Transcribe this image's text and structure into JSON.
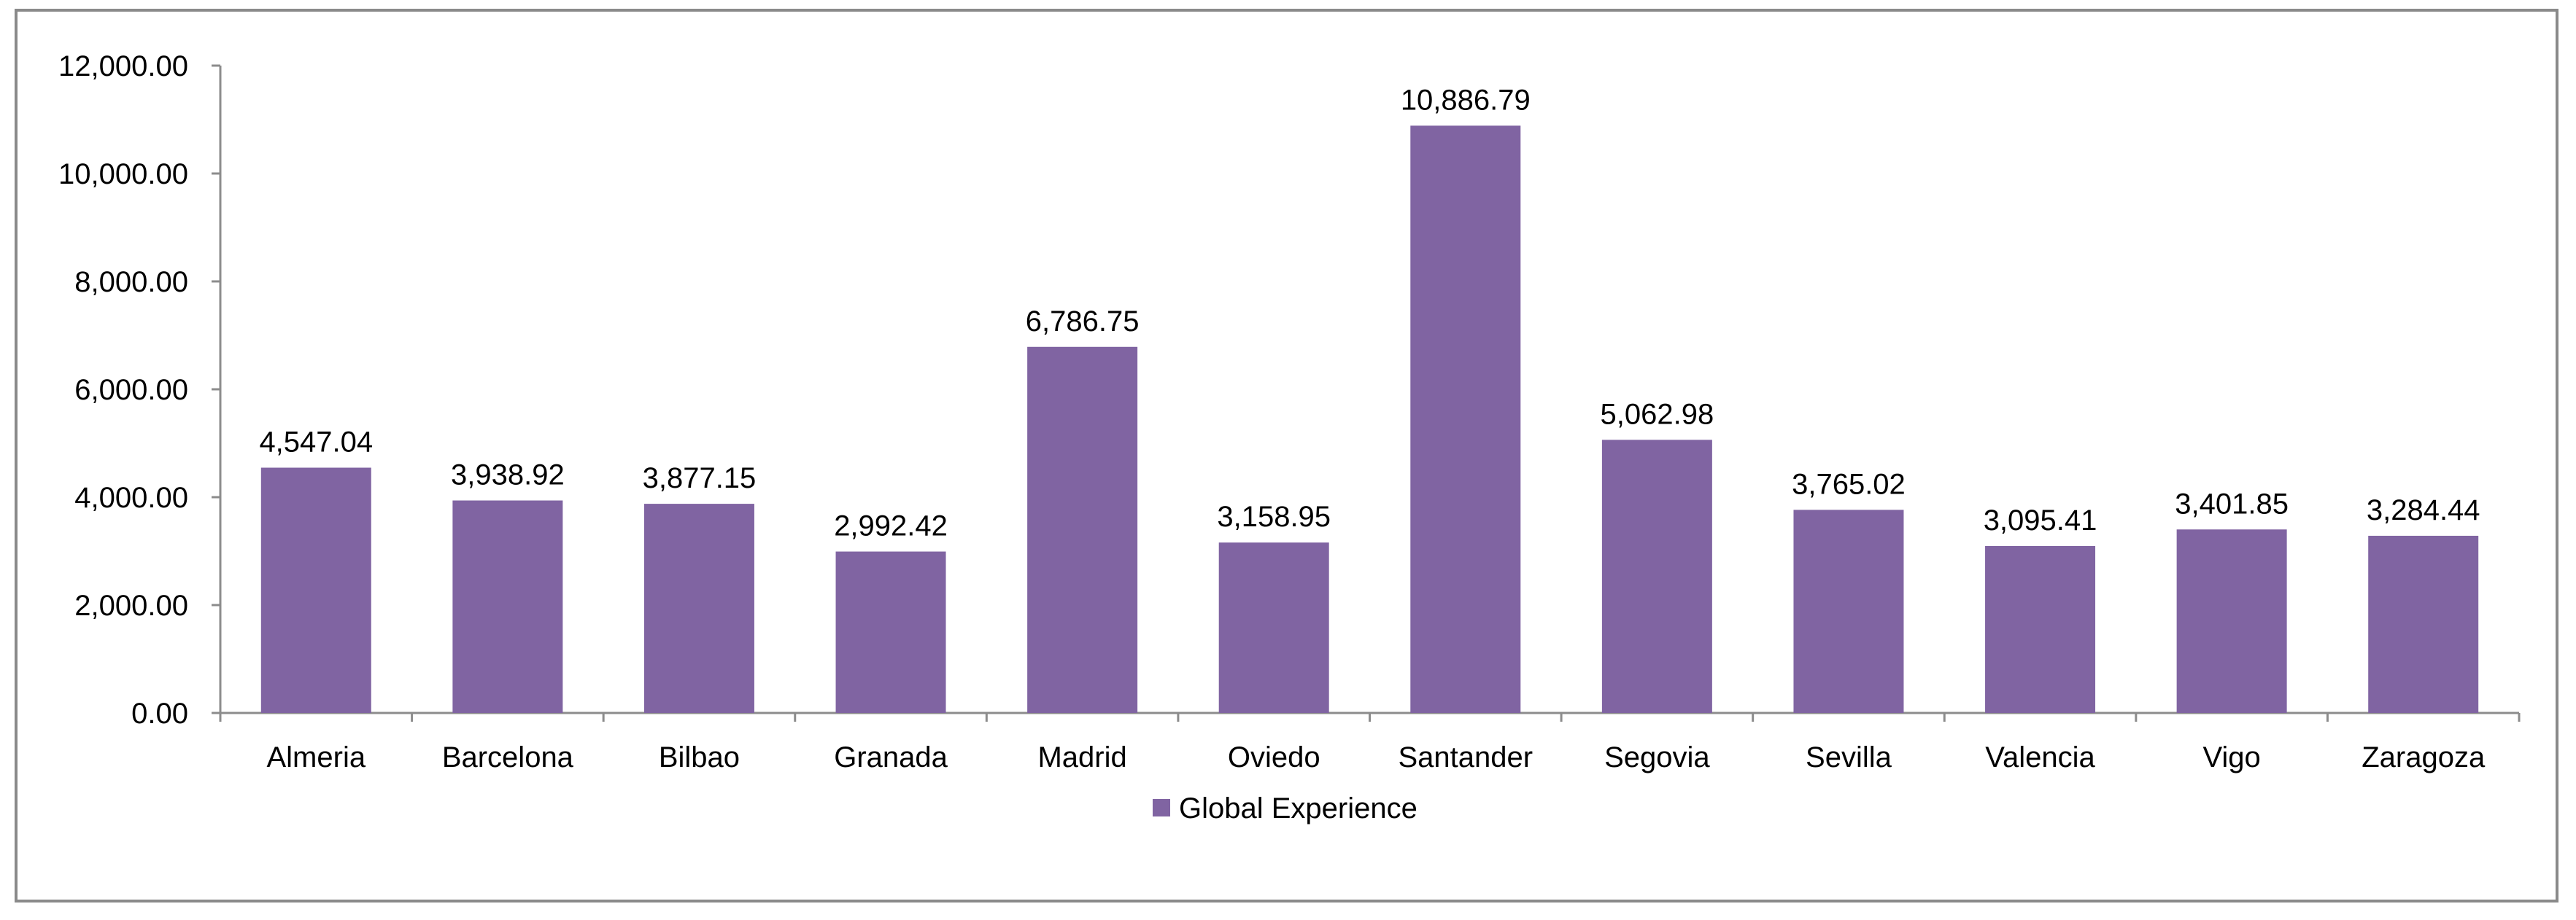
{
  "chart_data": {
    "type": "bar",
    "title": "",
    "xlabel": "",
    "ylabel": "",
    "categories": [
      "Almeria",
      "Barcelona",
      "Bilbao",
      "Granada",
      "Madrid",
      "Oviedo",
      "Santander",
      "Segovia",
      "Sevilla",
      "Valencia",
      "Vigo",
      "Zaragoza"
    ],
    "series": [
      {
        "name": "Global Experience",
        "values": [
          4547.04,
          3938.92,
          3877.15,
          2992.42,
          6786.75,
          3158.95,
          10886.79,
          5062.98,
          3765.02,
          3095.41,
          3401.85,
          3284.44
        ],
        "data_labels": [
          "4,547.04",
          "3,938.92",
          "3,877.15",
          "2,992.42",
          "6,786.75",
          "3,158.95",
          "10,886.79",
          "5,062.98",
          "3,765.02",
          "3,095.41",
          "3,401.85",
          "3,284.44"
        ],
        "color": "#8064a2"
      }
    ],
    "ylim": [
      0,
      12000
    ],
    "yticks": [
      0,
      2000,
      4000,
      6000,
      8000,
      10000,
      12000
    ],
    "ytick_labels": [
      "0.00",
      "2,000.00",
      "4,000.00",
      "6,000.00",
      "8,000.00",
      "10,000.00",
      "12,000.00"
    ],
    "grid": false,
    "legend": {
      "position": "bottom",
      "entries": [
        "Global Experience"
      ]
    },
    "colors": {
      "axis": "#8c8c8c",
      "border": "#8a8a8a",
      "bar": "#8064a2"
    }
  }
}
